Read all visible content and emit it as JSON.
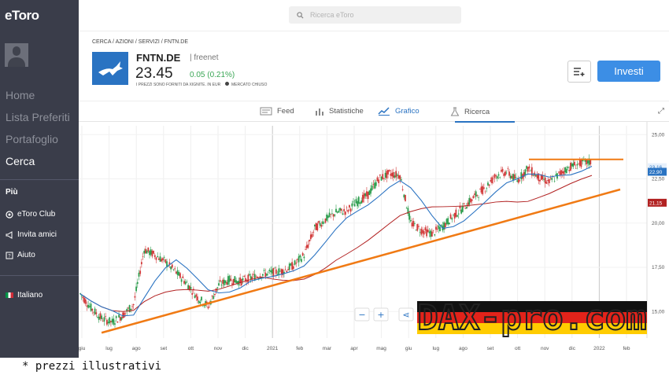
{
  "app": {
    "logo": "eToro"
  },
  "sidebar": {
    "items": [
      {
        "label": "Home"
      },
      {
        "label": "Lista Preferiti"
      },
      {
        "label": "Portafoglio"
      },
      {
        "label": "Cerca"
      }
    ],
    "more_title": "Più",
    "more_items": [
      {
        "label": "eToro Club"
      },
      {
        "label": "Invita amici"
      },
      {
        "label": "Aiuto"
      }
    ],
    "language": "Italiano"
  },
  "search": {
    "placeholder": "Ricerca eToro"
  },
  "breadcrumb": "CERCA / AZIONI / SERVIZI / FNTN.DE",
  "instrument": {
    "ticker": "FNTN.DE",
    "company": "freenet",
    "price": "23.45",
    "change": "0.05 (0.21%)",
    "note": "I PREZZI SONO FORNITI DA XIGNITE. IN EUR",
    "status": "MERCATO CHIUSO",
    "change_color": "#3aa655"
  },
  "actions": {
    "invest_label": "Investi"
  },
  "tabs": [
    {
      "label": "Feed"
    },
    {
      "label": "Statistiche"
    },
    {
      "label": "Grafico"
    },
    {
      "label": "Ricerca"
    }
  ],
  "chart_data": {
    "type": "line",
    "x_ticks": [
      "giu",
      "lug",
      "ago",
      "set",
      "ott",
      "nov",
      "dic",
      "2021",
      "feb",
      "mar",
      "apr",
      "mag",
      "giu",
      "lug",
      "ago",
      "set",
      "ott",
      "nov",
      "dic",
      "2022",
      "feb"
    ],
    "y_ticks": [
      "25,00",
      "22,50",
      "20,00",
      "17,50",
      "15,00"
    ],
    "ylim": [
      13.5,
      25.5
    ],
    "markers": [
      {
        "label": "23,16",
        "color": "#2a73c2"
      },
      {
        "label": "22,90",
        "color": "#2a73c2"
      },
      {
        "label": "21,15",
        "color": "#b22222"
      }
    ],
    "controls": [
      "−",
      "+",
      "share"
    ],
    "watermark": "DAX-pro.com",
    "close_approx": [
      16.0,
      15.2,
      14.6,
      14.4,
      14.8,
      15.4,
      18.5,
      18.2,
      17.8,
      17.2,
      16.6,
      15.8,
      15.3,
      16.5,
      16.8,
      16.7,
      16.9,
      17.1,
      17.2,
      17.3,
      17.6,
      18.2,
      19.7,
      20.2,
      20.6,
      20.7,
      21.2,
      21.6,
      22.5,
      22.8,
      22.7,
      20.0,
      19.6,
      19.4,
      19.8,
      20.4,
      20.9,
      21.5,
      22.0,
      22.7,
      22.9,
      22.4,
      23.1,
      22.6,
      22.3,
      22.8,
      23.2,
      23.4,
      23.45
    ]
  },
  "footnote": "* prezzi illustrativi"
}
